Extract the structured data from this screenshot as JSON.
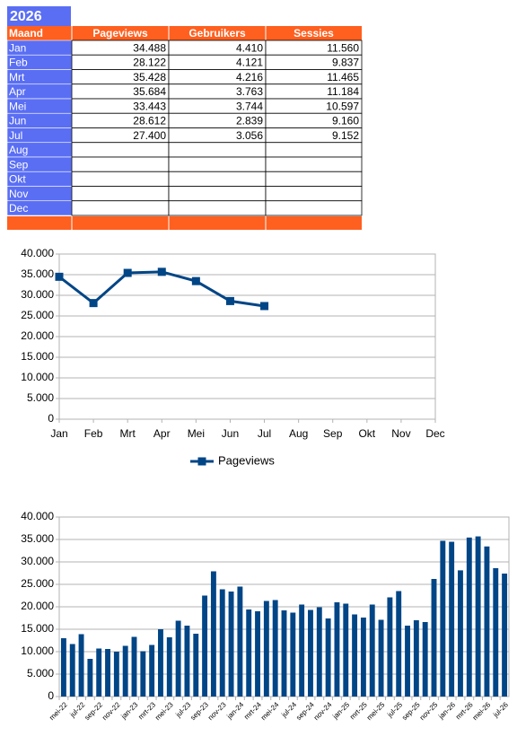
{
  "table": {
    "title": "2026",
    "header": [
      "Maand",
      "Pageviews",
      "Gebruikers",
      "Sessies"
    ],
    "rows": [
      [
        "Jan",
        "34.488",
        "4.410",
        "11.560"
      ],
      [
        "Feb",
        "28.122",
        "4.121",
        "9.837"
      ],
      [
        "Mrt",
        "35.428",
        "4.216",
        "11.465"
      ],
      [
        "Apr",
        "35.684",
        "3.763",
        "11.184"
      ],
      [
        "Mei",
        "33.443",
        "3.744",
        "10.597"
      ],
      [
        "Jun",
        "28.612",
        "2.839",
        "9.160"
      ],
      [
        "Jul",
        "27.400",
        "3.056",
        "9.152"
      ],
      [
        "Aug",
        null,
        null,
        null
      ],
      [
        "Sep",
        null,
        null,
        null
      ],
      [
        "Okt",
        null,
        null,
        null
      ],
      [
        "Nov",
        null,
        null,
        null
      ],
      [
        "Dec",
        null,
        null,
        null
      ]
    ]
  },
  "chart_data": [
    {
      "type": "line",
      "categories": [
        "Jan",
        "Feb",
        "Mrt",
        "Apr",
        "Mei",
        "Jun",
        "Jul",
        "Aug",
        "Sep",
        "Okt",
        "Nov",
        "Dec"
      ],
      "series": [
        {
          "name": "Pageviews",
          "color": "#004586",
          "values": [
            34488,
            28122,
            35428,
            35684,
            33443,
            28612,
            27400,
            null,
            null,
            null,
            null,
            null
          ]
        }
      ],
      "ylim": [
        0,
        40000
      ],
      "yticks": [
        0,
        {
          "value": 5000,
          "label": "5.000"
        },
        {
          "value": 10000,
          "label": "10.000"
        },
        {
          "value": 15000,
          "label": "15.000"
        },
        {
          "value": 20000,
          "label": "20.000"
        },
        {
          "value": 25000,
          "label": "25.000"
        },
        {
          "value": 30000,
          "label": "30.000"
        },
        {
          "value": 35000,
          "label": "35.000"
        },
        {
          "value": 40000,
          "label": "40.000"
        }
      ],
      "grid": true,
      "legend": "bottom"
    },
    {
      "type": "bar",
      "categories": [
        "mei-22",
        null,
        "jul-22",
        null,
        "sep-22",
        null,
        "nov-22",
        null,
        "jan-23",
        null,
        "mrt-23",
        null,
        "mei-23",
        null,
        "jul-23",
        null,
        "sep-23",
        null,
        "nov-23",
        null,
        "jan-24",
        null,
        "mrt-24",
        null,
        "mei-24",
        null,
        "jul-24",
        null,
        "sep-24",
        null,
        "nov-24",
        null,
        "jan-25",
        null,
        "mrt-25",
        null,
        "mei-25",
        null,
        "jul-25",
        null,
        "sep-25",
        null,
        "nov-25",
        null,
        "jan-26",
        null,
        "mrt-26",
        null,
        "mei-26",
        null,
        "jul-26"
      ],
      "color": "#004586",
      "values": [
        13000,
        11700,
        13900,
        8400,
        10700,
        10600,
        10000,
        11300,
        13300,
        10100,
        11500,
        15000,
        13200,
        16900,
        15800,
        14000,
        22500,
        27900,
        23900,
        23400,
        24500,
        19400,
        19000,
        21300,
        21500,
        19200,
        18700,
        20500,
        19300,
        19900,
        17400,
        21000,
        20700,
        18300,
        17600,
        20500,
        17100,
        22100,
        23500,
        15800,
        17000,
        16600,
        26200,
        34700,
        34488,
        28122,
        35428,
        35684,
        33443,
        28612,
        27400
      ],
      "ylim": [
        0,
        40000
      ],
      "yticks": [
        0,
        {
          "value": 5000,
          "label": "5.000"
        },
        {
          "value": 10000,
          "label": "10.000"
        },
        {
          "value": 15000,
          "label": "15.000"
        },
        {
          "value": 20000,
          "label": "20.000"
        },
        {
          "value": 25000,
          "label": "25.000"
        },
        {
          "value": 30000,
          "label": "30.000"
        },
        {
          "value": 35000,
          "label": "35.000"
        },
        {
          "value": 40000,
          "label": "40.000"
        }
      ],
      "grid": true
    }
  ]
}
